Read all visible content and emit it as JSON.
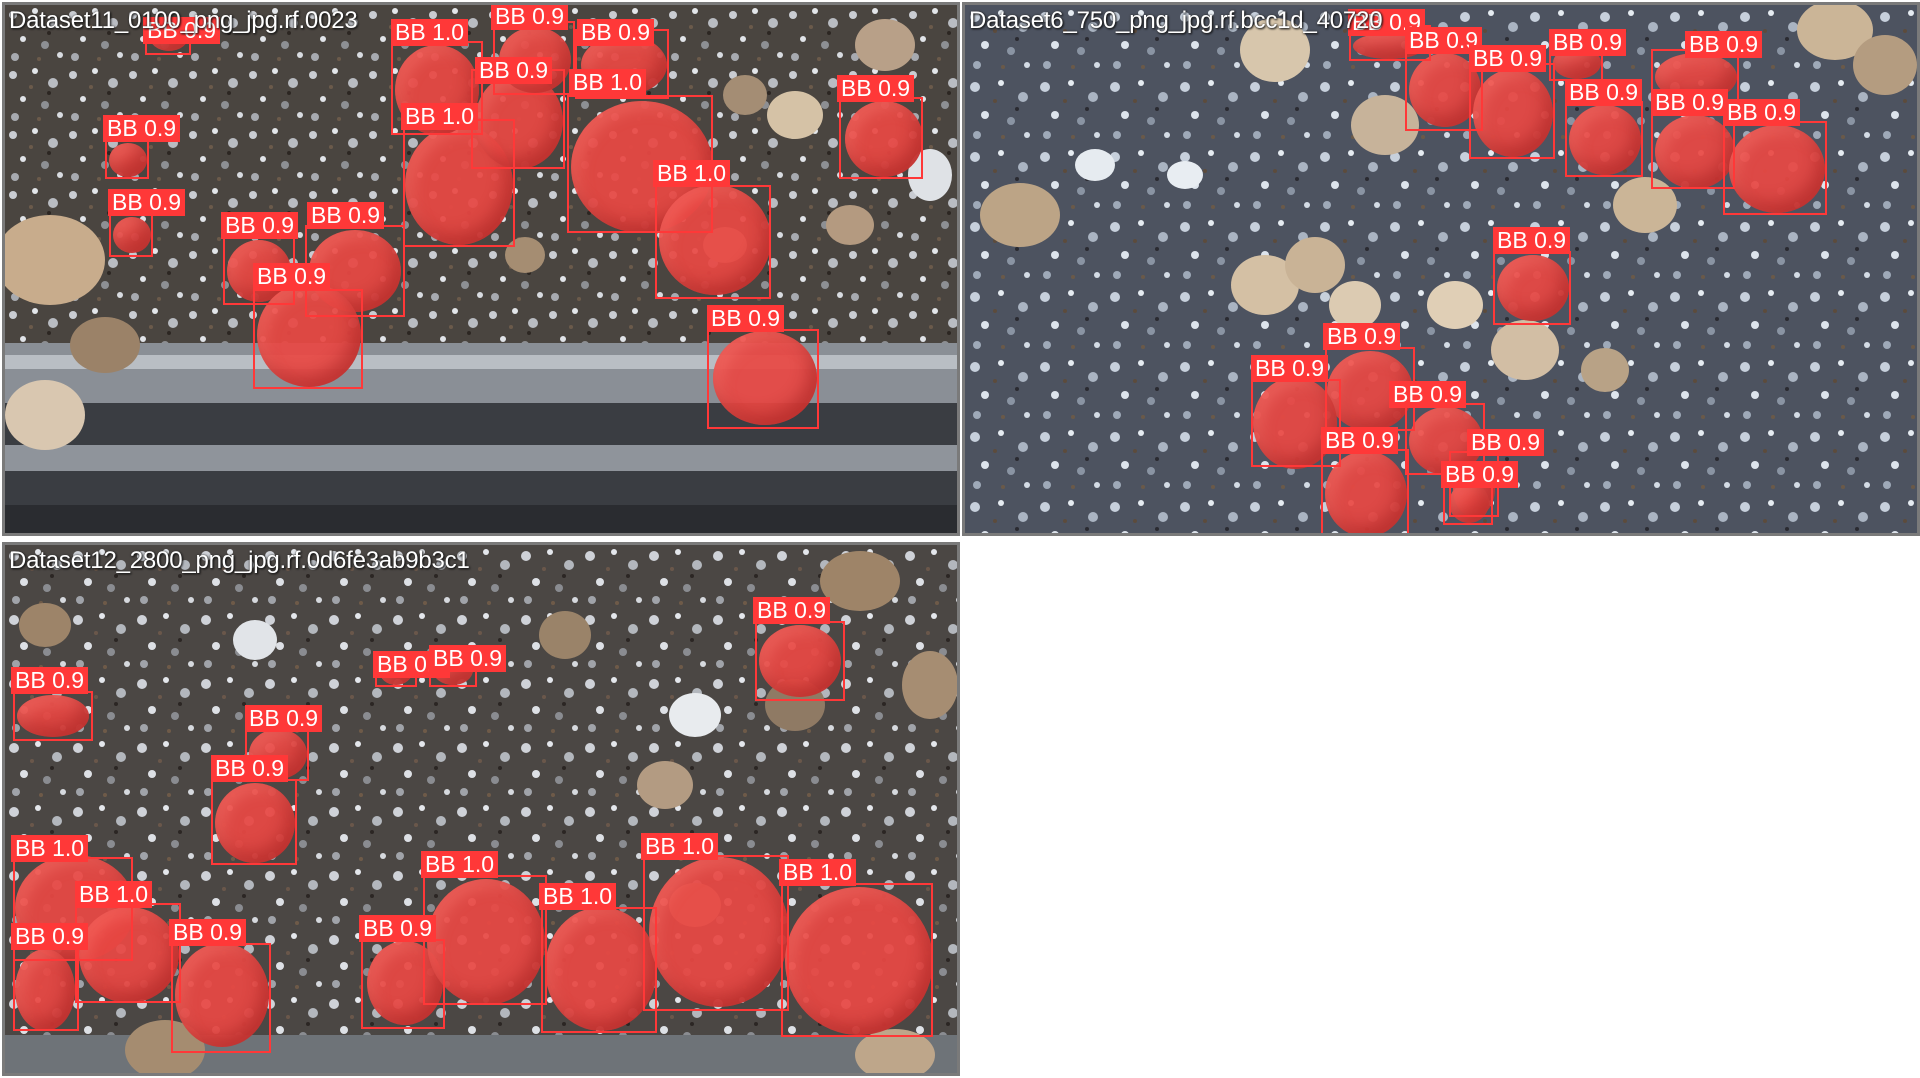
{
  "label_color": "#ff3838",
  "fill_color": "#e84844",
  "tiles": [
    {
      "title": "Dataset11_0100_png_jpg.rf.0023",
      "detections": [
        {
          "label": "BB 0.9"
        },
        {
          "label": "BB 0.9"
        },
        {
          "label": "BB 0.9"
        },
        {
          "label": "BB 0.9"
        },
        {
          "label": "BB 0.9"
        },
        {
          "label": "BB 1.0"
        },
        {
          "label": "BB 1.0"
        },
        {
          "label": "BB 0.9"
        },
        {
          "label": "BB 0.9"
        },
        {
          "label": "BB 0.9"
        },
        {
          "label": "BB 0.9"
        },
        {
          "label": "BB 0.9"
        },
        {
          "label": "BB 1.0"
        },
        {
          "label": "BB 1.0"
        },
        {
          "label": "BB 0.9"
        }
      ]
    },
    {
      "title": "Dataset6_750_png_jpg.rf.bcc1d_40720",
      "detections": [
        {
          "label": "BB 0.9"
        },
        {
          "label": "BB 0.9"
        },
        {
          "label": "BB 0.9"
        },
        {
          "label": "BB 0.9"
        },
        {
          "label": "BB 0.9"
        },
        {
          "label": "BB 0.9"
        },
        {
          "label": "BB 0.9"
        },
        {
          "label": "BB 0.9"
        },
        {
          "label": "BB 0.9"
        },
        {
          "label": "BB 0.9"
        },
        {
          "label": "BB 0.9"
        },
        {
          "label": "BB 0.9"
        },
        {
          "label": "BB 0.9"
        },
        {
          "label": "BB 0.9"
        },
        {
          "label": "BB 0.9"
        }
      ]
    },
    {
      "title": "Dataset12_2800_png_jpg.rf.0d6fe3ab9b3c1",
      "detections": [
        {
          "label": "BB 0.9"
        },
        {
          "label": "BB 0.9"
        },
        {
          "label": "BB 0.9"
        },
        {
          "label": "BB 0.9"
        },
        {
          "label": "BB 0.9"
        },
        {
          "label": "BB 0.9"
        },
        {
          "label": "BB 1.0"
        },
        {
          "label": "BB 1.0"
        },
        {
          "label": "BB 0.9"
        },
        {
          "label": "BB 0.9"
        },
        {
          "label": "BB 0.9"
        },
        {
          "label": "BB 1.0"
        },
        {
          "label": "BB 1.0"
        },
        {
          "label": "BB 1.0"
        },
        {
          "label": "BB 1.0"
        }
      ]
    }
  ]
}
